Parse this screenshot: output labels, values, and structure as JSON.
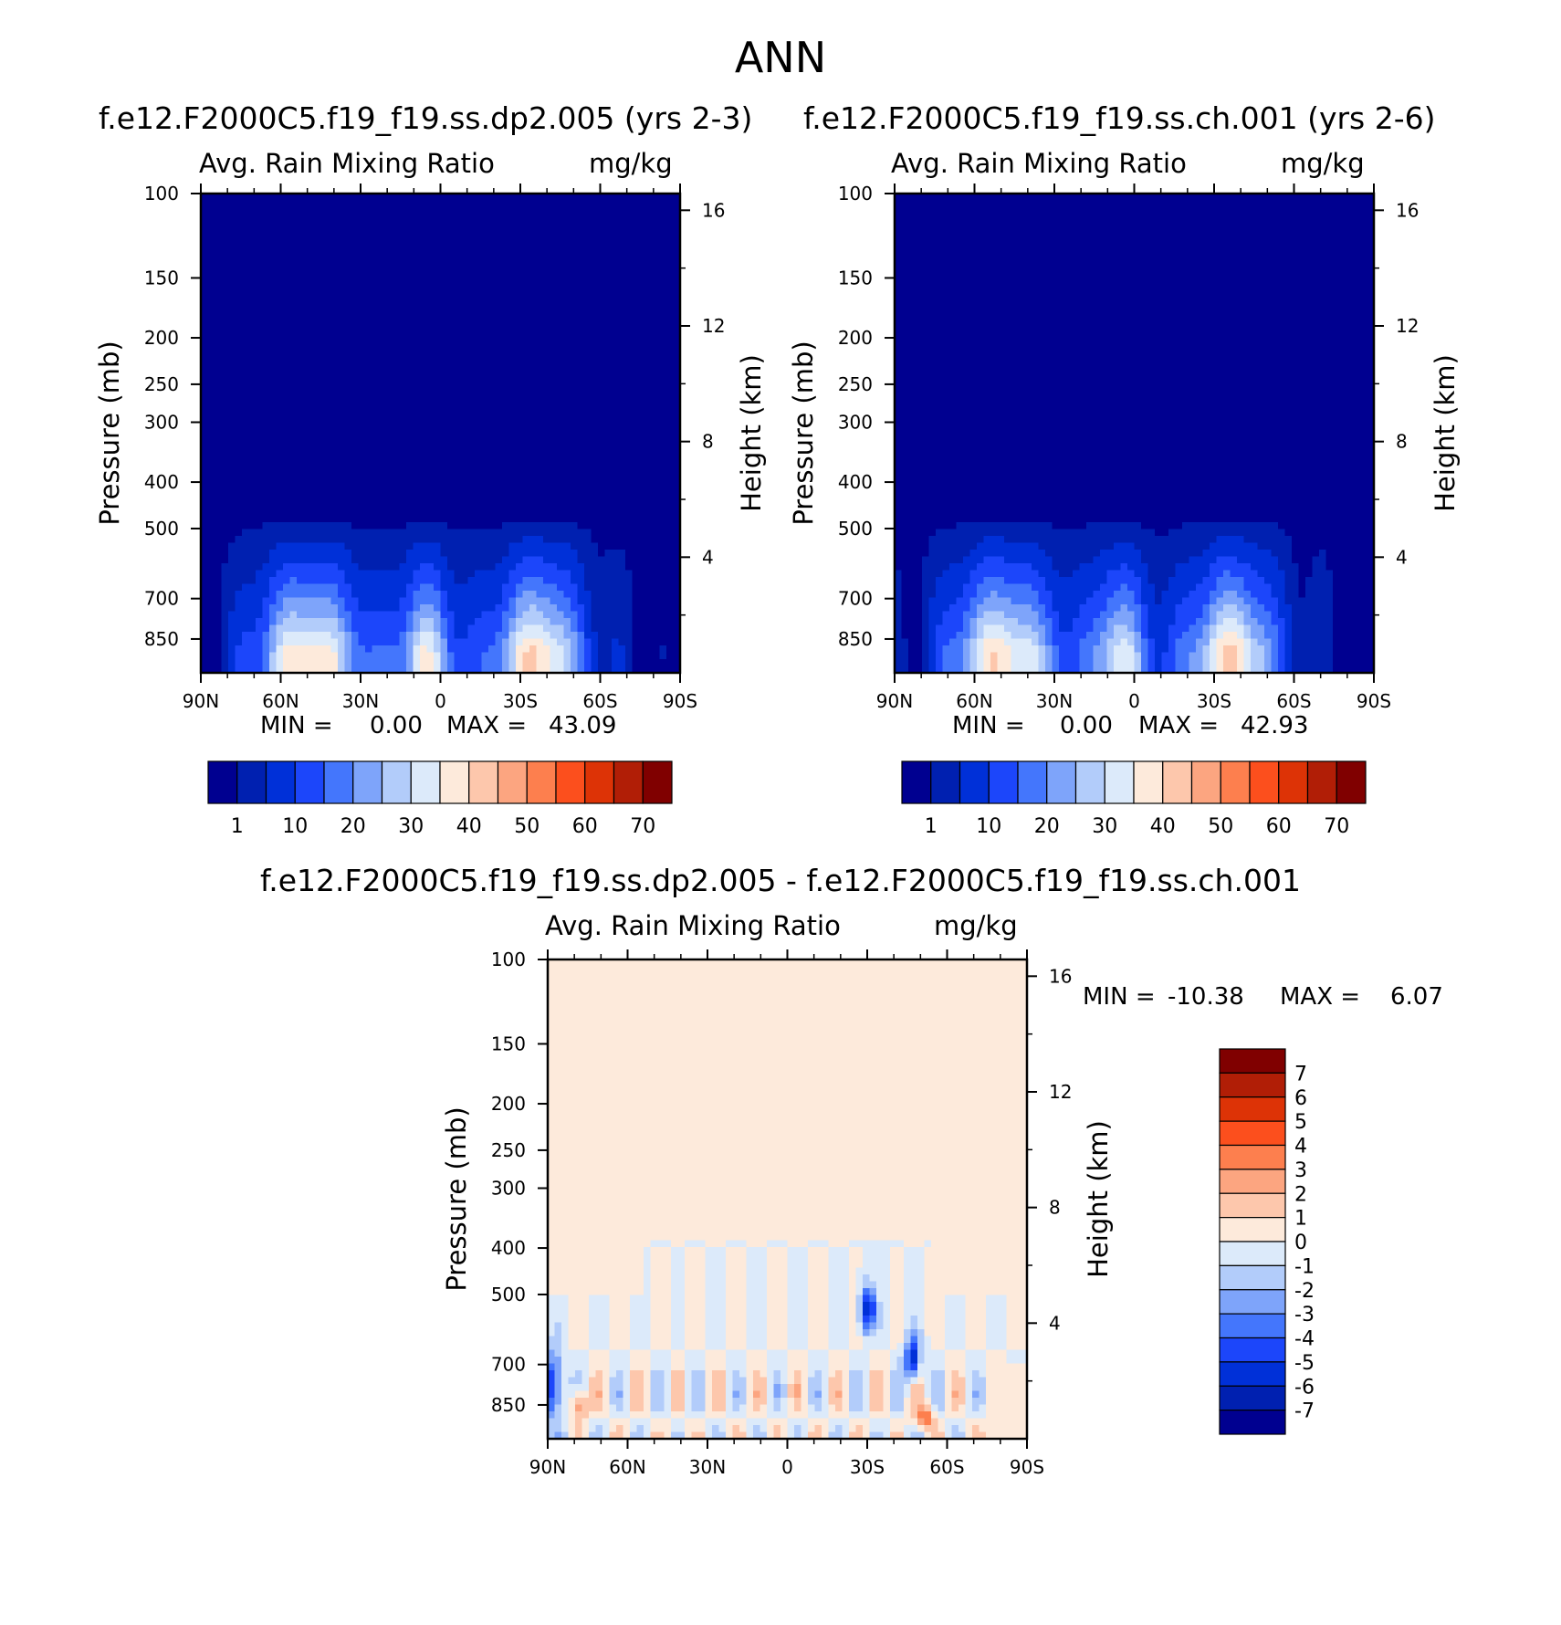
{
  "figure": {
    "title": "ANN"
  },
  "chart_data": [
    {
      "type": "heatmap",
      "title": "f.e12.F2000C5.f19_f19.ss.dp2.005 (yrs 2-3)",
      "subtitle": "Avg. Rain Mixing Ratio",
      "units": "mg/kg",
      "xlabel": "",
      "ylabel": "Pressure (mb)",
      "y2label": "Height (km)",
      "x_ticks": [
        "90N",
        "60N",
        "30N",
        "0",
        "30S",
        "60S",
        "90S"
      ],
      "y_ticks": [
        "100",
        "150",
        "200",
        "250",
        "300",
        "400",
        "500",
        "700",
        "850"
      ],
      "y2_ticks": [
        "16",
        "12",
        "8",
        "4"
      ],
      "ylim": [
        100,
        1000
      ],
      "min_label": "MIN =",
      "min_value": "0.00",
      "max_label": "MAX =",
      "max_value": "43.09",
      "colorbar": {
        "labels": [
          "1",
          "10",
          "20",
          "30",
          "40",
          "50",
          "60",
          "70"
        ],
        "colors": [
          "#000090",
          "#0020b0",
          "#0030d8",
          "#1c46fa",
          "#4476fc",
          "#7ea4fa",
          "#b2ccfa",
          "#dceafa",
          "#fdeadb",
          "#fdc7ac",
          "#fca580",
          "#fd7f4e",
          "#fc4f1d",
          "#dd3306",
          "#b11e06",
          "#800000"
        ]
      }
    },
    {
      "type": "heatmap",
      "title": "f.e12.F2000C5.f19_f19.ss.ch.001 (yrs 2-6)",
      "subtitle": "Avg. Rain Mixing Ratio",
      "units": "mg/kg",
      "xlabel": "",
      "ylabel": "Pressure (mb)",
      "y2label": "Height (km)",
      "x_ticks": [
        "90N",
        "60N",
        "30N",
        "0",
        "30S",
        "60S",
        "90S"
      ],
      "y_ticks": [
        "100",
        "150",
        "200",
        "250",
        "300",
        "400",
        "500",
        "700",
        "850"
      ],
      "y2_ticks": [
        "16",
        "12",
        "8",
        "4"
      ],
      "ylim": [
        100,
        1000
      ],
      "min_label": "MIN =",
      "min_value": "0.00",
      "max_label": "MAX =",
      "max_value": "42.93",
      "colorbar": {
        "labels": [
          "1",
          "10",
          "20",
          "30",
          "40",
          "50",
          "60",
          "70"
        ],
        "colors": [
          "#000090",
          "#0020b0",
          "#0030d8",
          "#1c46fa",
          "#4476fc",
          "#7ea4fa",
          "#b2ccfa",
          "#dceafa",
          "#fdeadb",
          "#fdc7ac",
          "#fca580",
          "#fd7f4e",
          "#fc4f1d",
          "#dd3306",
          "#b11e06",
          "#800000"
        ]
      }
    },
    {
      "type": "heatmap",
      "title": "f.e12.F2000C5.f19_f19.ss.dp2.005 - f.e12.F2000C5.f19_f19.ss.ch.001",
      "subtitle": "Avg. Rain Mixing Ratio",
      "units": "mg/kg",
      "xlabel": "",
      "ylabel": "Pressure (mb)",
      "y2label": "Height (km)",
      "x_ticks": [
        "90N",
        "60N",
        "30N",
        "0",
        "30S",
        "60S",
        "90S"
      ],
      "y_ticks": [
        "100",
        "150",
        "200",
        "250",
        "300",
        "400",
        "500",
        "700",
        "850"
      ],
      "y2_ticks": [
        "16",
        "12",
        "8",
        "4"
      ],
      "ylim": [
        100,
        1000
      ],
      "min_label": "MIN =",
      "min_value": "-10.38",
      "max_label": "MAX =",
      "max_value": "6.07",
      "colorbar": {
        "labels": [
          "7",
          "6",
          "5",
          "4",
          "3",
          "2",
          "1",
          "0",
          "-1",
          "-2",
          "-3",
          "-4",
          "-5",
          "-6",
          "-7"
        ],
        "colors": [
          "#800000",
          "#b11e06",
          "#dd3306",
          "#fc4f1d",
          "#fd7f4e",
          "#fca580",
          "#fdc7ac",
          "#fdeadb",
          "#dceafa",
          "#b2ccfa",
          "#7ea4fa",
          "#4476fc",
          "#1c46fa",
          "#0030d8",
          "#0020b0",
          "#000090"
        ]
      }
    }
  ]
}
